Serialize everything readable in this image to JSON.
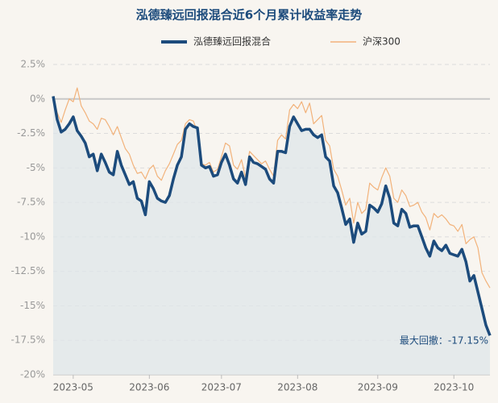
{
  "chart_data": {
    "type": "line",
    "title": "泓德臻远回报混合近6个月累计收益率走势",
    "annotation": "最大回撤：-17.15%",
    "categories": [
      null,
      null,
      null,
      null,
      null,
      "2023-05",
      null,
      null,
      null,
      null,
      null,
      null,
      null,
      null,
      null,
      null,
      null,
      null,
      null,
      null,
      null,
      null,
      null,
      null,
      "2023-06",
      null,
      null,
      null,
      null,
      null,
      null,
      null,
      null,
      null,
      null,
      null,
      null,
      null,
      null,
      null,
      null,
      null,
      "2023-07",
      null,
      null,
      null,
      null,
      null,
      null,
      null,
      null,
      null,
      null,
      null,
      null,
      null,
      null,
      null,
      null,
      null,
      null,
      "2023-08",
      null,
      null,
      null,
      null,
      null,
      null,
      null,
      null,
      null,
      null,
      null,
      null,
      null,
      null,
      null,
      null,
      null,
      null,
      null,
      "2023-09",
      null,
      null,
      null,
      null,
      null,
      null,
      null,
      null,
      null,
      null,
      null,
      null,
      null,
      null,
      null,
      null,
      null,
      null,
      "2023-10",
      null,
      null,
      null,
      null,
      null,
      null,
      null,
      null,
      null
    ],
    "series": [
      {
        "name": "泓德臻远回报混合",
        "color": "#1c4b7c",
        "values": [
          0.2,
          -1.5,
          -2.4,
          -2.2,
          -1.8,
          -1.3,
          -2.3,
          -2.7,
          -3.2,
          -4.2,
          -4.0,
          -5.2,
          -4.0,
          -4.6,
          -5.3,
          -5.5,
          -3.8,
          -4.8,
          -5.5,
          -6.2,
          -6.0,
          -7.2,
          -7.4,
          -8.4,
          -6.0,
          -6.5,
          -7.2,
          -7.4,
          -7.5,
          -7.0,
          -5.8,
          -4.8,
          -4.2,
          -2.2,
          -1.8,
          -2.0,
          -2.1,
          -4.8,
          -5.0,
          -4.9,
          -5.6,
          -5.5,
          -4.6,
          -4.0,
          -4.8,
          -5.8,
          -6.1,
          -5.3,
          -6.2,
          -4.2,
          -4.6,
          -4.7,
          -4.9,
          -5.1,
          -5.8,
          -6.1,
          -3.8,
          -3.8,
          -3.9,
          -2.0,
          -1.3,
          -1.8,
          -2.3,
          -2.2,
          -2.2,
          -2.6,
          -2.8,
          -2.6,
          -4.2,
          -4.5,
          -6.3,
          -6.8,
          -7.9,
          -9.1,
          -8.7,
          -10.4,
          -9.0,
          -9.8,
          -9.6,
          -7.7,
          -7.9,
          -8.2,
          -7.6,
          -6.3,
          -7.2,
          -9.0,
          -9.2,
          -8.0,
          -8.3,
          -9.3,
          -9.2,
          -9.2,
          -10.0,
          -10.8,
          -11.4,
          -10.3,
          -10.8,
          -11.0,
          -10.6,
          -11.2,
          -11.3,
          -11.4,
          -10.9,
          -11.8,
          -13.2,
          -12.8,
          -14.0,
          -15.2,
          -16.4,
          -17.15
        ]
      },
      {
        "name": "沪深300",
        "color": "#f2b27a",
        "values": [
          0.2,
          -1.0,
          -1.7,
          -0.8,
          0.0,
          -0.2,
          0.8,
          -0.5,
          -1.0,
          -1.6,
          -1.8,
          -2.2,
          -1.4,
          -1.5,
          -2.0,
          -2.6,
          -2.0,
          -2.8,
          -3.6,
          -4.0,
          -4.8,
          -5.4,
          -5.3,
          -5.8,
          -5.1,
          -4.8,
          -5.6,
          -5.9,
          -5.2,
          -4.7,
          -4.0,
          -3.3,
          -3.0,
          -1.8,
          -1.5,
          -1.6,
          -2.4,
          -4.7,
          -4.8,
          -4.6,
          -5.3,
          -5.1,
          -4.2,
          -3.2,
          -3.4,
          -4.8,
          -5.1,
          -4.4,
          -5.7,
          -3.8,
          -4.1,
          -4.4,
          -4.7,
          -4.5,
          -5.1,
          -5.6,
          -3.0,
          -2.6,
          -2.9,
          -0.8,
          -0.4,
          -0.7,
          -0.2,
          -1.0,
          -0.3,
          -1.8,
          -1.5,
          -1.2,
          -3.0,
          -3.4,
          -5.1,
          -5.6,
          -6.6,
          -7.7,
          -7.2,
          -9.0,
          -7.5,
          -8.3,
          -8.0,
          -6.1,
          -6.4,
          -6.6,
          -5.7,
          -5.0,
          -5.6,
          -7.2,
          -7.5,
          -6.6,
          -7.0,
          -7.8,
          -7.7,
          -7.5,
          -8.2,
          -8.6,
          -9.5,
          -8.3,
          -8.6,
          -8.4,
          -8.7,
          -9.1,
          -9.2,
          -9.6,
          -9.1,
          -10.5,
          -10.2,
          -10.0,
          -10.8,
          -12.6,
          -13.2,
          -13.7
        ]
      }
    ],
    "ylim": [
      -20,
      2.5
    ],
    "yticks": [
      {
        "value": 2.5,
        "label": "2.5%"
      },
      {
        "value": 0,
        "label": "0%"
      },
      {
        "value": -2.5,
        "label": "-2.5%"
      },
      {
        "value": -5,
        "label": "-5%"
      },
      {
        "value": -7.5,
        "label": "-7.5%"
      },
      {
        "value": -10,
        "label": "-10%"
      },
      {
        "value": -12.5,
        "label": "-12.5%"
      },
      {
        "value": -15,
        "label": "-15%"
      },
      {
        "value": -17.5,
        "label": "-17.5%"
      },
      {
        "value": -20,
        "label": "-20%"
      }
    ],
    "grid": true
  }
}
